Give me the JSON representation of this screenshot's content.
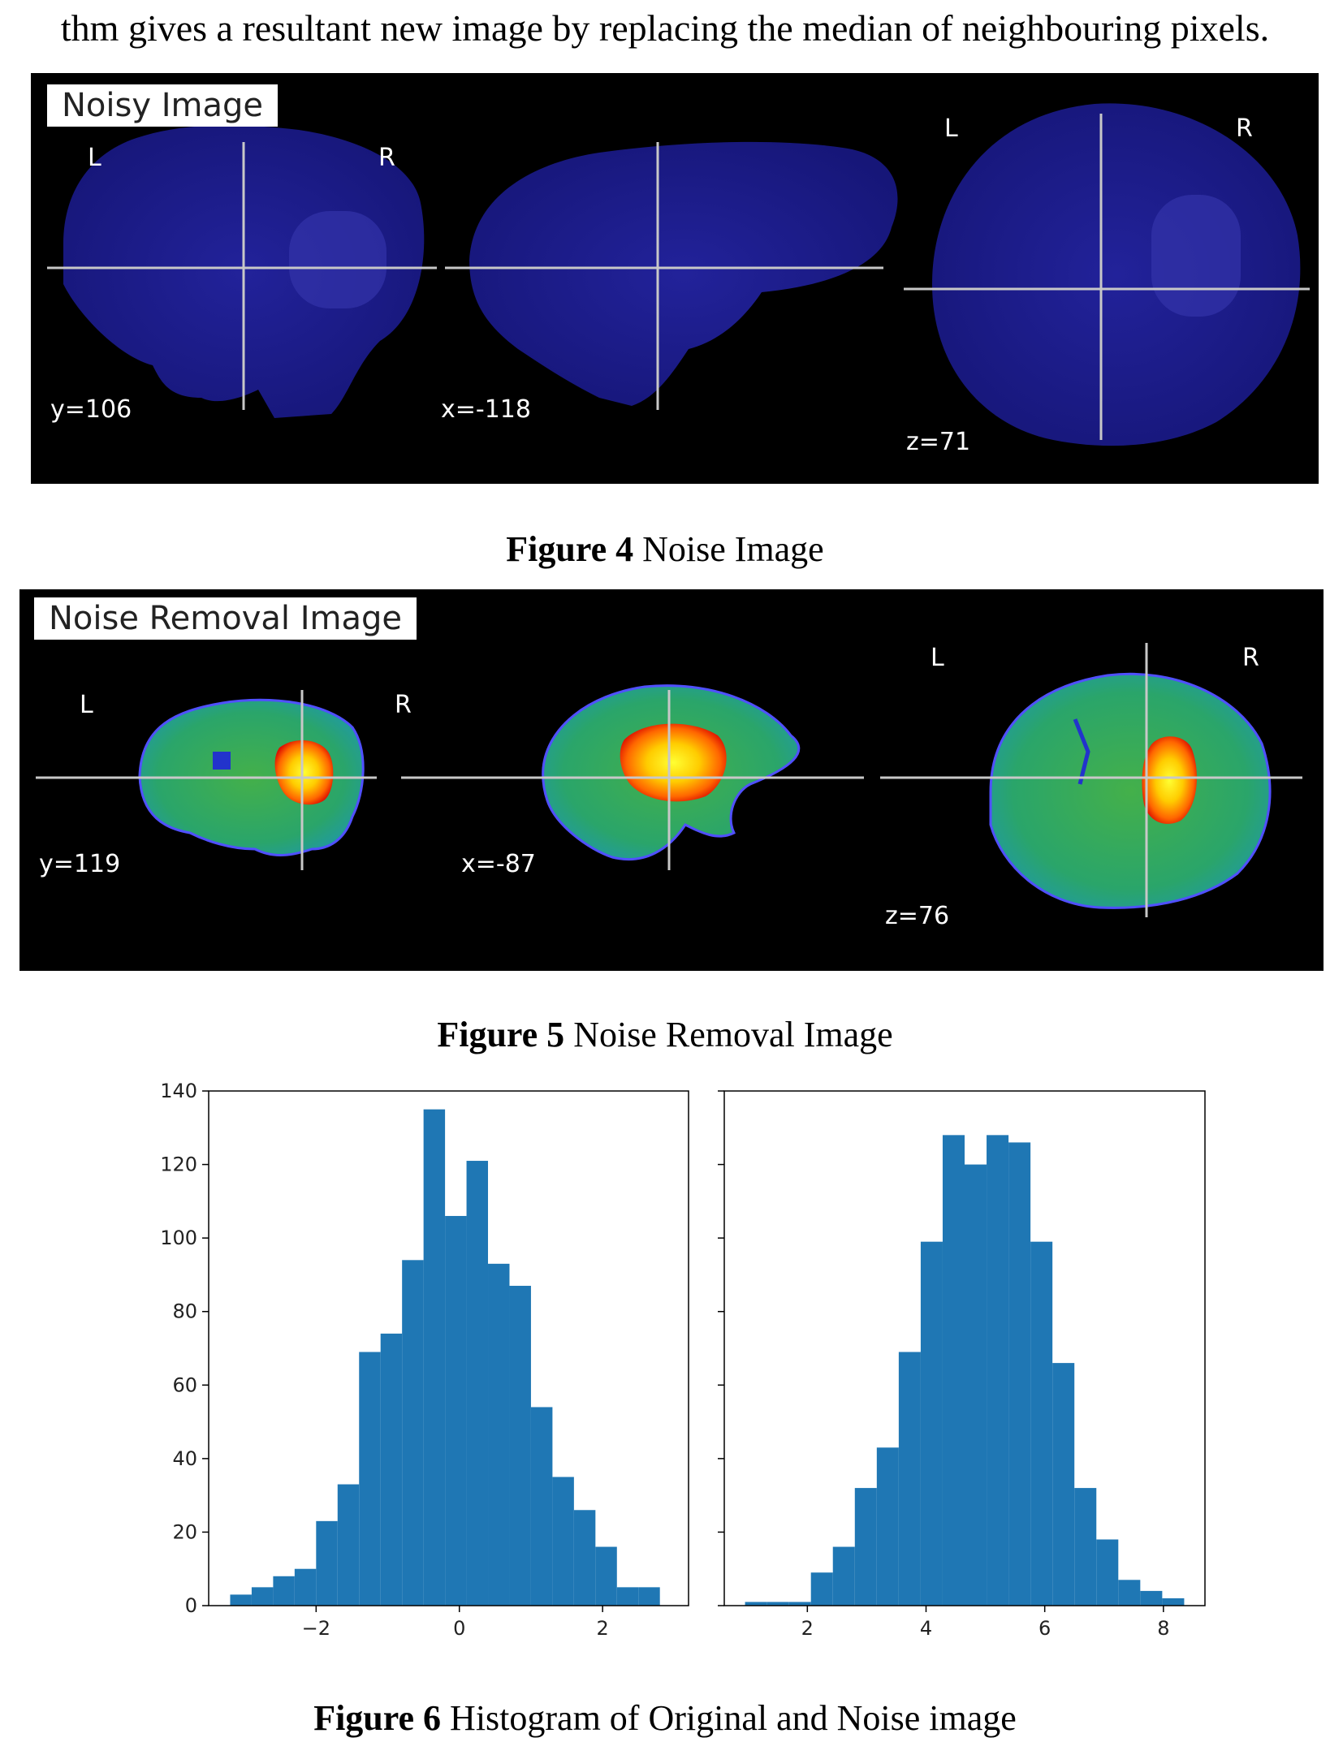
{
  "body_text": "thm gives a resultant new image by replacing the median of neighbouring pixels.",
  "figure4": {
    "panel_label": "Noisy Image",
    "views": [
      {
        "left_label": "L",
        "right_label": "R",
        "coord": "y=106"
      },
      {
        "coord": "x=-118"
      },
      {
        "left_label": "L",
        "right_label": "R",
        "coord": "z=71"
      }
    ],
    "caption_bold": "Figure 4",
    "caption_text": " Noise Image"
  },
  "figure5": {
    "panel_label": "Noise Removal Image",
    "views": [
      {
        "left_label": "L",
        "right_label": "R",
        "coord": "y=119"
      },
      {
        "coord": "x=-87"
      },
      {
        "left_label": "L",
        "right_label": "R",
        "coord": "z=76"
      }
    ],
    "caption_bold": "Figure 5",
    "caption_text": " Noise Removal Image"
  },
  "figure6": {
    "caption_bold": "Figure 6",
    "caption_text": " Histogram of Original and Noise image"
  },
  "colors": {
    "bar": "#1f77b4",
    "crosshair": "#c8c8c8",
    "noisy_brain": "#1a1a8c"
  },
  "chart_data": [
    {
      "type": "bar",
      "title": "",
      "xlabel": "",
      "ylabel": "",
      "xlim": [
        -3.5,
        3.2
      ],
      "ylim": [
        0,
        140
      ],
      "xticks": [
        -2,
        0,
        2
      ],
      "yticks": [
        0,
        20,
        40,
        60,
        80,
        100,
        120,
        140
      ],
      "bin_edges": [
        -3.2,
        -2.9,
        -2.6,
        -2.3,
        -2.0,
        -1.7,
        -1.4,
        -1.1,
        -0.8,
        -0.5,
        -0.2,
        0.1,
        0.4,
        0.7,
        1.0,
        1.3,
        1.6,
        1.9,
        2.2,
        2.5,
        2.8
      ],
      "values": [
        3,
        5,
        8,
        10,
        23,
        33,
        69,
        74,
        94,
        135,
        106,
        121,
        93,
        87,
        54,
        35,
        26,
        16,
        5,
        5
      ],
      "grid": false
    },
    {
      "type": "bar",
      "title": "",
      "xlabel": "",
      "ylabel": "",
      "xlim": [
        0.6,
        8.7
      ],
      "ylim": [
        0,
        140
      ],
      "xticks": [
        2,
        4,
        6,
        8
      ],
      "yticks": [
        0,
        20,
        40,
        60,
        80,
        100,
        120,
        140
      ],
      "bin_edges": [
        0.95,
        1.32,
        1.69,
        2.06,
        2.43,
        2.8,
        3.17,
        3.54,
        3.91,
        4.28,
        4.65,
        5.02,
        5.39,
        5.76,
        6.13,
        6.5,
        6.87,
        7.24,
        7.61,
        7.98,
        8.35
      ],
      "values": [
        1,
        1,
        1,
        9,
        16,
        32,
        43,
        69,
        99,
        128,
        120,
        128,
        126,
        99,
        66,
        32,
        18,
        7,
        4,
        2
      ],
      "grid": false
    }
  ]
}
